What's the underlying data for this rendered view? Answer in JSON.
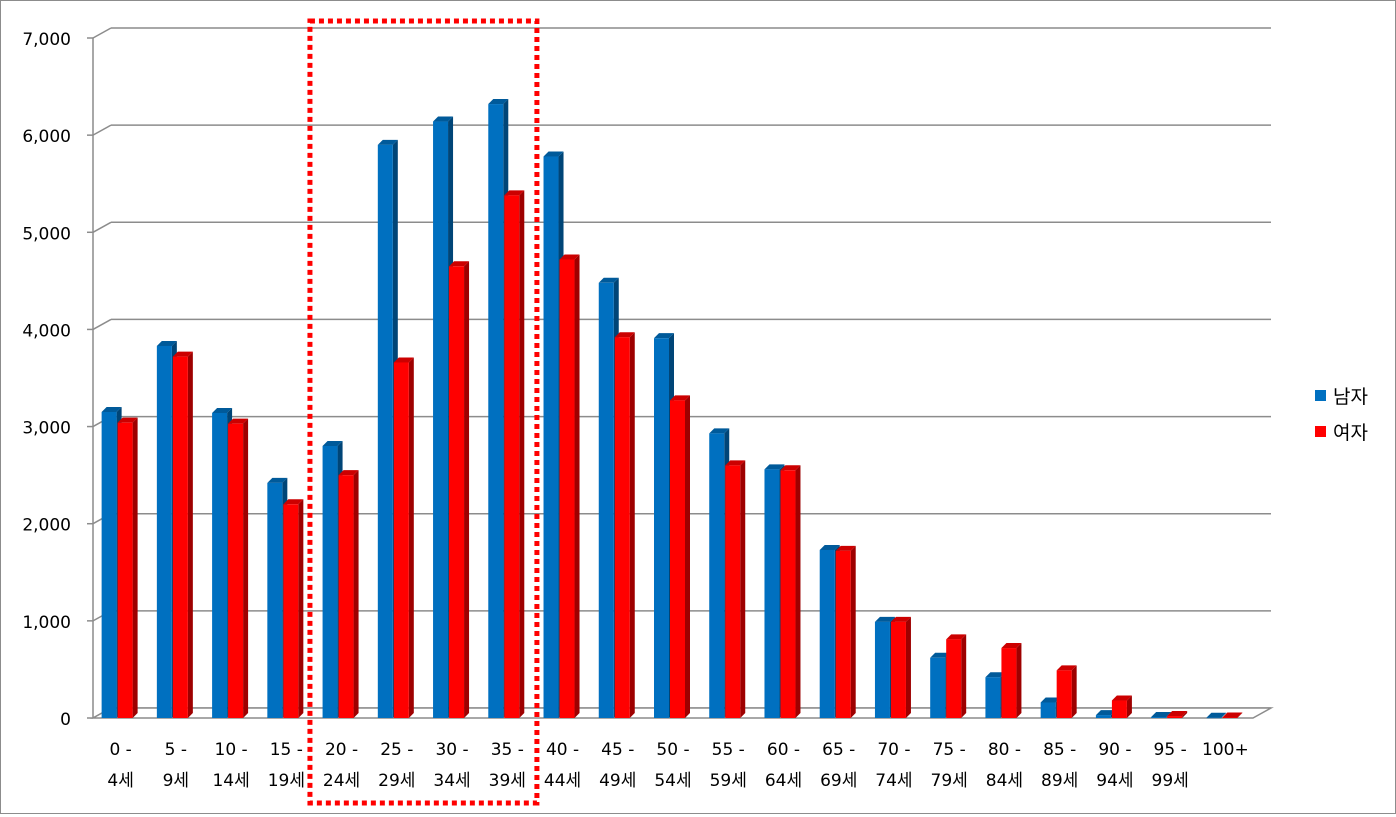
{
  "chart_data": {
    "type": "bar",
    "title": "",
    "xlabel": "",
    "ylabel": "",
    "ylim": [
      0,
      7000
    ],
    "yticks": [
      "0",
      "1,000",
      "2,000",
      "3,000",
      "4,000",
      "5,000",
      "6,000",
      "7,000"
    ],
    "grid": true,
    "legend_position": "right",
    "categories": [
      [
        "0 -",
        "4세"
      ],
      [
        "5 -",
        "9세"
      ],
      [
        "10 -",
        "14세"
      ],
      [
        "15 -",
        "19세"
      ],
      [
        "20 -",
        "24세"
      ],
      [
        "25 -",
        "29세"
      ],
      [
        "30 -",
        "34세"
      ],
      [
        "35 -",
        "39세"
      ],
      [
        "40 -",
        "44세"
      ],
      [
        "45 -",
        "49세"
      ],
      [
        "50 -",
        "54세"
      ],
      [
        "55 -",
        "59세"
      ],
      [
        "60 -",
        "64세"
      ],
      [
        "65 -",
        "69세"
      ],
      [
        "70 -",
        "74세"
      ],
      [
        "75 -",
        "79세"
      ],
      [
        "80 -",
        "84세"
      ],
      [
        "85 -",
        "89세"
      ],
      [
        "90 -",
        "94세"
      ],
      [
        "95 -",
        "99세"
      ],
      [
        "100+",
        ""
      ]
    ],
    "series": [
      {
        "name": "남자",
        "color": "#0070C0",
        "values": [
          3150,
          3830,
          3140,
          2420,
          2800,
          5900,
          6140,
          6320,
          5780,
          4480,
          3910,
          2930,
          2560,
          1730,
          990,
          620,
          420,
          160,
          30,
          10,
          3
        ]
      },
      {
        "name": "여자",
        "color": "#FF0000",
        "values": [
          3040,
          3720,
          3030,
          2200,
          2500,
          3660,
          4650,
          5380,
          4720,
          3920,
          3270,
          2600,
          2550,
          1720,
          990,
          810,
          720,
          490,
          180,
          20,
          5
        ]
      }
    ],
    "highlight": {
      "from_index": 4,
      "to_index": 7,
      "style": "dotted",
      "color": "#FF0000"
    }
  }
}
